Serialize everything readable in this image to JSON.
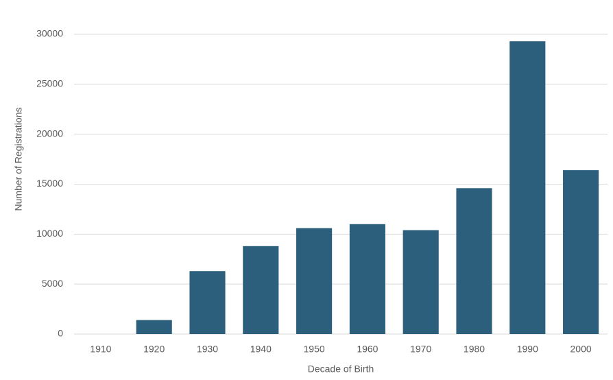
{
  "chart_data": {
    "type": "bar",
    "x_label": "Decade of Birth",
    "y_label": "Number of Registrations",
    "categories": [
      "1910",
      "1920",
      "1930",
      "1940",
      "1950",
      "1960",
      "1970",
      "1980",
      "1990",
      "2000"
    ],
    "values": [
      0,
      1400,
      6300,
      8800,
      10600,
      11000,
      10400,
      14600,
      29300,
      16400
    ],
    "color": "#2c5f7c",
    "ylim": [
      0,
      30000
    ],
    "yticks": [
      0,
      5000,
      10000,
      15000,
      20000,
      25000,
      30000
    ],
    "grid": true
  }
}
